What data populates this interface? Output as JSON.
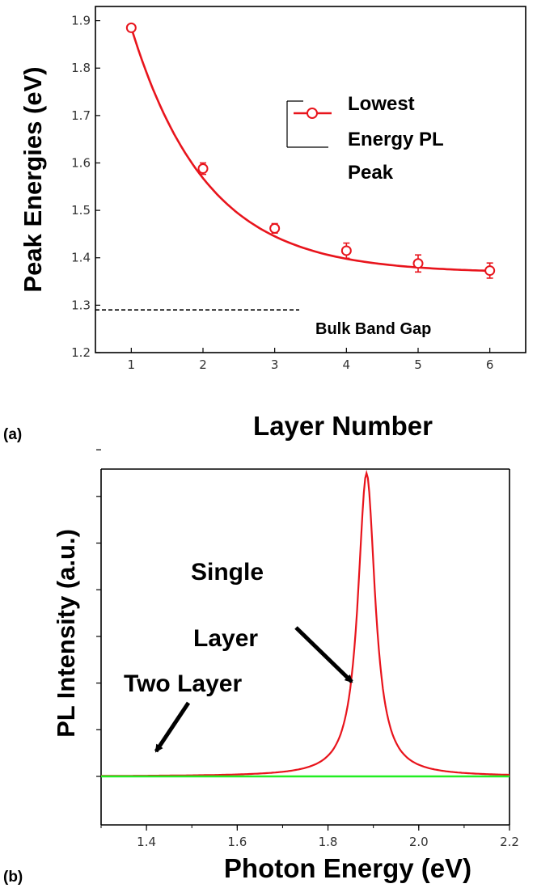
{
  "chart_data": [
    {
      "panel_label": "(a)",
      "type": "line",
      "xlabel": "Layer Number",
      "ylabel": "Peak Energies (eV)",
      "xlim": [
        0.5,
        6.5
      ],
      "ylim": [
        1.2,
        1.93
      ],
      "x_ticks": [
        "1",
        "2",
        "3",
        "4",
        "5",
        "6"
      ],
      "y_ticks": [
        "1.2",
        "1.3",
        "1.4",
        "1.5",
        "1.6",
        "1.7",
        "1.8",
        "1.9"
      ],
      "series": [
        {
          "name": "Lowest Energy PL Peak",
          "color": "#e8141c",
          "marker": "open-circle",
          "x": [
            1,
            2,
            3,
            4,
            5,
            6
          ],
          "y": [
            1.885,
            1.588,
            1.462,
            1.415,
            1.388,
            1.373
          ],
          "error": [
            0.006,
            0.012,
            0.01,
            0.016,
            0.018,
            0.016
          ],
          "fit": "exponential decay"
        }
      ],
      "reference_line": {
        "label": "Bulk Band Gap",
        "y": 1.29,
        "style": "dashed"
      },
      "legend": {
        "text_lines": [
          "Lowest",
          "Energy PL",
          "Peak"
        ],
        "placement": "top-right"
      }
    },
    {
      "panel_label": "(b)",
      "type": "line",
      "xlabel": "Photon Energy (eV)",
      "ylabel": "PL Intensity (a.u.)",
      "xlim": [
        1.3,
        2.2
      ],
      "x_ticks": [
        "1.4",
        "1.6",
        "1.8",
        "2.0",
        "2.2"
      ],
      "y_ticks_count": 8,
      "series": [
        {
          "label": "Single Layer",
          "color": "#e8141c",
          "shape": "lorentzian",
          "peak_center": 1.885,
          "peak_width": 0.023,
          "peak_height": 6.5
        },
        {
          "label": "Two Layer",
          "color": "#22ee22",
          "shape": "flat",
          "value": 0
        }
      ],
      "annotations": [
        {
          "text_lines": [
            "Single",
            "Layer"
          ]
        },
        {
          "text_lines": [
            "Two Layer"
          ]
        }
      ]
    }
  ]
}
